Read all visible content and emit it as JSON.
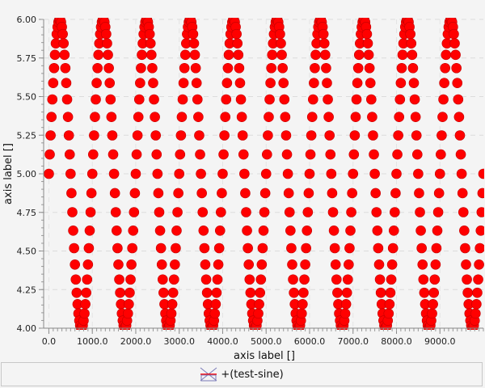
{
  "chart_data": {
    "type": "scatter",
    "xlabel": "axis label []",
    "ylabel": "axis label []",
    "xlim": [
      -120,
      10000
    ],
    "ylim": [
      4.0,
      6.0
    ],
    "x_ticks": [
      "0.0",
      "1000.0",
      "2000.0",
      "3000.0",
      "4000.0",
      "5000.0",
      "6000.0",
      "7000.0",
      "8000.0",
      "9000.0"
    ],
    "y_ticks": [
      "4.00",
      "4.25",
      "4.50",
      "4.75",
      "5.00",
      "5.25",
      "5.50",
      "5.75",
      "6.00"
    ],
    "grid": true,
    "legend_position": "bottom",
    "series": [
      {
        "name": "+(test-sine)",
        "color": "#ff0000",
        "marker": "circle",
        "function": "5 + sin(2*pi*x/1000)",
        "x_range": [
          0,
          10000
        ],
        "sample_step": 20
      }
    ]
  },
  "legend": {
    "label": "+(test-sine)",
    "icon": "line-marker-icon"
  }
}
